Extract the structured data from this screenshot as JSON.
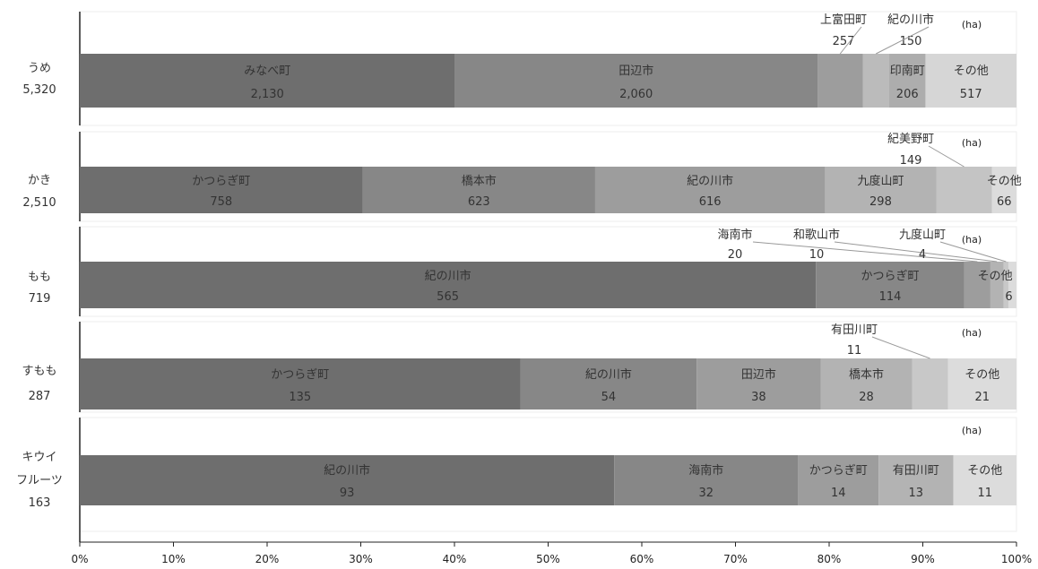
{
  "chart_data": {
    "type": "bar",
    "stacked": true,
    "percent_stacked": true,
    "unit_label": "(ha)",
    "x_ticks": [
      "0%",
      "10%",
      "20%",
      "30%",
      "40%",
      "50%",
      "60%",
      "70%",
      "80%",
      "90%",
      "100%"
    ],
    "xlim": [
      0,
      100
    ],
    "rows": [
      {
        "category": [
          "うめ"
        ],
        "total": "5,320",
        "segments": [
          {
            "label": "みなべ町",
            "value": 2130,
            "value_text": "2,130",
            "color": "#6e6e6e"
          },
          {
            "label": "田辺市",
            "value": 2060,
            "value_text": "2,060",
            "color": "#878787"
          },
          {
            "label": "上富田町",
            "value": 257,
            "value_text": "257",
            "color": "#9d9d9d",
            "callout": true
          },
          {
            "label": "紀の川市",
            "value": 150,
            "value_text": "150",
            "color": "#bbbbbb",
            "callout": true
          },
          {
            "label": "印南町",
            "value": 206,
            "value_text": "206",
            "color": "#adadad"
          },
          {
            "label": "その他",
            "value": 517,
            "value_text": "517",
            "color": "#d6d6d6"
          }
        ]
      },
      {
        "category": [
          "かき"
        ],
        "total": "2,510",
        "segments": [
          {
            "label": "かつらぎ町",
            "value": 758,
            "value_text": "758",
            "color": "#6e6e6e"
          },
          {
            "label": "橋本市",
            "value": 623,
            "value_text": "623",
            "color": "#878787"
          },
          {
            "label": "紀の川市",
            "value": 616,
            "value_text": "616",
            "color": "#9d9d9d"
          },
          {
            "label": "九度山町",
            "value": 298,
            "value_text": "298",
            "color": "#b3b3b3"
          },
          {
            "label": "紀美野町",
            "value": 149,
            "value_text": "149",
            "color": "#c4c4c4",
            "callout": true
          },
          {
            "label": "その他",
            "value": 66,
            "value_text": "66",
            "color": "#dcdcdc"
          }
        ]
      },
      {
        "category": [
          "もも"
        ],
        "total": "719",
        "segments": [
          {
            "label": "紀の川市",
            "value": 565,
            "value_text": "565",
            "color": "#6e6e6e"
          },
          {
            "label": "かつらぎ町",
            "value": 114,
            "value_text": "114",
            "color": "#878787"
          },
          {
            "label": "海南市",
            "value": 20,
            "value_text": "20",
            "color": "#9d9d9d",
            "callout": true
          },
          {
            "label": "和歌山市",
            "value": 10,
            "value_text": "10",
            "color": "#b3b3b3",
            "callout": true
          },
          {
            "label": "九度山町",
            "value": 4,
            "value_text": "4",
            "color": "#c8c8c8",
            "callout": true
          },
          {
            "label": "その他",
            "value": 6,
            "value_text": "6",
            "color": "#dcdcdc"
          }
        ]
      },
      {
        "category": [
          "すもも"
        ],
        "total": "287",
        "segments": [
          {
            "label": "かつらぎ町",
            "value": 135,
            "value_text": "135",
            "color": "#6e6e6e"
          },
          {
            "label": "紀の川市",
            "value": 54,
            "value_text": "54",
            "color": "#878787"
          },
          {
            "label": "田辺市",
            "value": 38,
            "value_text": "38",
            "color": "#9d9d9d"
          },
          {
            "label": "橋本市",
            "value": 28,
            "value_text": "28",
            "color": "#b3b3b3"
          },
          {
            "label": "有田川町",
            "value": 11,
            "value_text": "11",
            "color": "#c8c8c8",
            "callout": true
          },
          {
            "label": "その他",
            "value": 21,
            "value_text": "21",
            "color": "#dcdcdc"
          }
        ]
      },
      {
        "category": [
          "キウイ",
          "フルーツ"
        ],
        "total": "163",
        "segments": [
          {
            "label": "紀の川市",
            "value": 93,
            "value_text": "93",
            "color": "#6e6e6e"
          },
          {
            "label": "海南市",
            "value": 32,
            "value_text": "32",
            "color": "#878787"
          },
          {
            "label": "かつらぎ町",
            "value": 14,
            "value_text": "14",
            "color": "#9d9d9d"
          },
          {
            "label": "有田川町",
            "value": 13,
            "value_text": "13",
            "color": "#b3b3b3"
          },
          {
            "label": "その他",
            "value": 11,
            "value_text": "11",
            "color": "#dcdcdc"
          }
        ]
      }
    ]
  }
}
